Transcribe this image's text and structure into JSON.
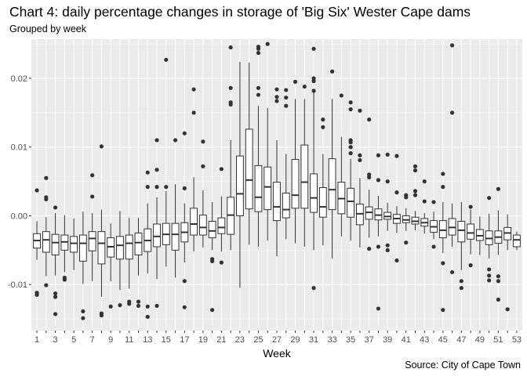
{
  "chart_data": {
    "type": "boxplot",
    "title": "Chart 4: daily percentage changes in storage of 'Big Six' Wester Cape dams",
    "subtitle": "Grouped by week",
    "caption": "Source: City of Cape Town",
    "xlabel": "Week",
    "ylabel": "",
    "ylim": [
      -0.0167,
      0.0257
    ],
    "grid": true,
    "x_tick_labels": [
      "1",
      "3",
      "5",
      "7",
      "9",
      "11",
      "13",
      "15",
      "17",
      "19",
      "21",
      "23",
      "25",
      "27",
      "29",
      "31",
      "33",
      "35",
      "37",
      "39",
      "41",
      "43",
      "45",
      "47",
      "49",
      "51",
      "53"
    ],
    "y_ticks": [
      -0.01,
      0.0,
      0.01,
      0.02
    ],
    "y_tick_labels": [
      "-0.01",
      "0.00",
      "0.01",
      "0.02"
    ],
    "colors": {
      "panel": "#ebebeb",
      "grid_major": "#ffffff",
      "box_fill": "#ffffff",
      "box_line": "#333333",
      "outlier": "#333333"
    },
    "weeks": [
      {
        "week": 1,
        "min": -0.0064,
        "q1": -0.0047,
        "median": -0.0036,
        "q3": -0.0026,
        "max": -0.0008,
        "outliers": [
          0.0037,
          -0.0112,
          -0.0115
        ]
      },
      {
        "week": 2,
        "min": -0.0088,
        "q1": -0.0053,
        "median": -0.0035,
        "q3": -0.0023,
        "max": -0.0002,
        "outliers": [
          0.0055,
          0.0027,
          0.0024,
          -0.0101
        ]
      },
      {
        "week": 3,
        "min": -0.0087,
        "q1": -0.0057,
        "median": -0.0039,
        "q3": -0.0027,
        "max": 0.0004,
        "outliers": [
          0.0012,
          -0.0113,
          -0.0118,
          -0.0143
        ]
      },
      {
        "week": 4,
        "min": -0.0082,
        "q1": -0.005,
        "median": -0.0038,
        "q3": -0.0028,
        "max": 0.0001,
        "outliers": [
          -0.009,
          -0.0093
        ]
      },
      {
        "week": 5,
        "min": -0.0079,
        "q1": -0.0053,
        "median": -0.004,
        "q3": -0.003,
        "max": -0.0004,
        "outliers": []
      },
      {
        "week": 6,
        "min": -0.0099,
        "q1": -0.0066,
        "median": -0.004,
        "q3": -0.0028,
        "max": 0.0006,
        "outliers": [
          -0.0139,
          -0.0149
        ]
      },
      {
        "week": 7,
        "min": -0.0095,
        "q1": -0.0051,
        "median": -0.0033,
        "q3": -0.0023,
        "max": 0.0004,
        "outliers": [
          0.0059,
          0.0028
        ]
      },
      {
        "week": 8,
        "min": -0.0118,
        "q1": -0.007,
        "median": -0.004,
        "q3": -0.0023,
        "max": 0.0009,
        "outliers": [
          0.0101,
          -0.0142,
          -0.0145
        ]
      },
      {
        "week": 9,
        "min": -0.0095,
        "q1": -0.006,
        "median": -0.0045,
        "q3": -0.0032,
        "max": -0.0011,
        "outliers": [
          -0.0132
        ]
      },
      {
        "week": 10,
        "min": -0.0108,
        "q1": -0.0063,
        "median": -0.0043,
        "q3": -0.003,
        "max": 0.0007,
        "outliers": [
          -0.013
        ]
      },
      {
        "week": 11,
        "min": -0.0106,
        "q1": -0.0063,
        "median": -0.004,
        "q3": -0.0028,
        "max": -0.0003,
        "outliers": [
          -0.0125,
          -0.0128
        ]
      },
      {
        "week": 12,
        "min": -0.0087,
        "q1": -0.0057,
        "median": -0.0039,
        "q3": -0.0025,
        "max": -0.0003,
        "outliers": [
          -0.0125,
          -0.0131
        ]
      },
      {
        "week": 13,
        "min": -0.0084,
        "q1": -0.0052,
        "median": -0.0036,
        "q3": -0.0019,
        "max": 0.0018,
        "outliers": [
          0.0063,
          0.0042,
          -0.0132,
          -0.0147
        ]
      },
      {
        "week": 14,
        "min": -0.0092,
        "q1": -0.0045,
        "median": -0.003,
        "q3": -0.0012,
        "max": 0.0027,
        "outliers": [
          0.011,
          0.0067,
          0.0042,
          -0.0131
        ]
      },
      {
        "week": 15,
        "min": -0.0074,
        "q1": -0.0042,
        "median": -0.0027,
        "q3": -0.0011,
        "max": 0.0036,
        "outliers": [
          0.0227,
          0.0042
        ]
      },
      {
        "week": 16,
        "min": -0.009,
        "q1": -0.005,
        "median": -0.0027,
        "q3": -0.0011,
        "max": 0.0046,
        "outliers": [
          0.011
        ]
      },
      {
        "week": 17,
        "min": -0.0068,
        "q1": -0.0038,
        "median": -0.0024,
        "q3": -0.001,
        "max": 0.0018,
        "outliers": [
          0.012,
          0.004,
          -0.0095,
          -0.0133
        ]
      },
      {
        "week": 18,
        "min": -0.0052,
        "q1": -0.0028,
        "median": -0.0012,
        "q3": 0.0011,
        "max": 0.0056,
        "outliers": [
          0.0184,
          0.015
        ]
      },
      {
        "week": 19,
        "min": -0.0046,
        "q1": -0.0028,
        "median": -0.0017,
        "q3": 0.0001,
        "max": 0.0037,
        "outliers": [
          0.0108,
          0.0072
        ]
      },
      {
        "week": 20,
        "min": -0.005,
        "q1": -0.0032,
        "median": -0.0022,
        "q3": -0.0008,
        "max": 0.002,
        "outliers": [
          -0.0063,
          -0.0066,
          -0.0137
        ]
      },
      {
        "week": 21,
        "min": -0.0052,
        "q1": -0.0026,
        "median": -0.0017,
        "q3": -0.0003,
        "max": 0.0028,
        "outliers": [
          0.0068,
          -0.0068
        ]
      },
      {
        "week": 22,
        "min": -0.005,
        "q1": -0.0027,
        "median": 0.0001,
        "q3": 0.0027,
        "max": 0.011,
        "outliers": [
          0.0245,
          0.0186,
          0.0165,
          0.0162
        ]
      },
      {
        "week": 23,
        "min": -0.0105,
        "q1": 0.0,
        "median": 0.0032,
        "q3": 0.0087,
        "max": 0.0224,
        "outliers": []
      },
      {
        "week": 24,
        "min": -0.0042,
        "q1": 0.001,
        "median": 0.0052,
        "q3": 0.0126,
        "max": 0.0223,
        "outliers": []
      },
      {
        "week": 25,
        "min": -0.0045,
        "q1": 0.0006,
        "median": 0.0027,
        "q3": 0.0073,
        "max": 0.016,
        "outliers": [
          0.0246,
          0.0243,
          0.0237,
          0.0186,
          0.0176
        ]
      },
      {
        "week": 26,
        "min": -0.0036,
        "q1": 0.0009,
        "median": 0.0042,
        "q3": 0.0071,
        "max": 0.0157,
        "outliers": [
          0.025
        ]
      },
      {
        "week": 27,
        "min": -0.0059,
        "q1": -0.0007,
        "median": 0.0013,
        "q3": 0.0049,
        "max": 0.011,
        "outliers": [
          0.0184,
          0.0173,
          0.0167
        ]
      },
      {
        "week": 28,
        "min": -0.0034,
        "q1": -0.0003,
        "median": 0.0009,
        "q3": 0.0033,
        "max": 0.009,
        "outliers": [
          0.0183,
          0.0172,
          0.016
        ]
      },
      {
        "week": 29,
        "min": -0.004,
        "q1": 0.0011,
        "median": 0.003,
        "q3": 0.0082,
        "max": 0.017,
        "outliers": [
          0.0195
        ]
      },
      {
        "week": 30,
        "min": -0.0045,
        "q1": 0.0011,
        "median": 0.0049,
        "q3": 0.0103,
        "max": 0.017,
        "outliers": [
          0.0188
        ]
      },
      {
        "week": 31,
        "min": -0.005,
        "q1": 0.0005,
        "median": 0.0026,
        "q3": 0.0061,
        "max": 0.018,
        "outliers": [
          0.0243,
          0.02,
          0.0196,
          0.0182,
          -0.0105
        ]
      },
      {
        "week": 32,
        "min": -0.0043,
        "q1": -0.0002,
        "median": 0.0013,
        "q3": 0.0041,
        "max": 0.009,
        "outliers": [
          0.014,
          0.0129
        ]
      },
      {
        "week": 33,
        "min": -0.0062,
        "q1": 0.0009,
        "median": 0.0038,
        "q3": 0.0083,
        "max": 0.017,
        "outliers": [
          0.021
        ]
      },
      {
        "week": 34,
        "min": -0.003,
        "q1": 0.0003,
        "median": 0.0025,
        "q3": 0.0049,
        "max": 0.0115,
        "outliers": [
          0.0175
        ]
      },
      {
        "week": 35,
        "min": -0.0036,
        "q1": -0.0002,
        "median": 0.0021,
        "q3": 0.004,
        "max": 0.0083,
        "outliers": [
          0.0165,
          0.0155,
          0.011,
          0.0107,
          0.01,
          0.0091
        ]
      },
      {
        "week": 36,
        "min": -0.0046,
        "q1": -0.0013,
        "median": 0.0003,
        "q3": 0.0017,
        "max": 0.0055,
        "outliers": [
          0.0153,
          0.0088,
          0.0081
        ]
      },
      {
        "week": 37,
        "min": -0.0032,
        "q1": -0.0005,
        "median": 0.0005,
        "q3": 0.0013,
        "max": 0.0038,
        "outliers": [
          0.014,
          0.006,
          0.0056,
          -0.0048
        ]
      },
      {
        "week": 38,
        "min": -0.003,
        "q1": -0.0006,
        "median": 0.0001,
        "q3": 0.001,
        "max": 0.0029,
        "outliers": [
          0.0088,
          0.0052,
          -0.0135,
          -0.0045
        ]
      },
      {
        "week": 39,
        "min": -0.0022,
        "q1": -0.0005,
        "median": -0.0001,
        "q3": 0.0005,
        "max": 0.0019,
        "outliers": [
          0.0089,
          0.005,
          -0.0043,
          -0.005
        ]
      },
      {
        "week": 40,
        "min": -0.0025,
        "q1": -0.0011,
        "median": -0.0004,
        "q3": 0.0002,
        "max": 0.0014,
        "outliers": [
          0.0087,
          0.0034,
          -0.0065
        ]
      },
      {
        "week": 41,
        "min": -0.0022,
        "q1": -0.001,
        "median": -0.0006,
        "q3": 0.0,
        "max": 0.0011,
        "outliers": [
          0.003,
          0.0027,
          -0.0039
        ]
      },
      {
        "week": 42,
        "min": -0.0021,
        "q1": -0.0012,
        "median": -0.0008,
        "q3": -0.0002,
        "max": 0.0007,
        "outliers": [
          0.0072,
          0.0066,
          0.0036,
          0.003
        ]
      },
      {
        "week": 43,
        "min": -0.0026,
        "q1": -0.0015,
        "median": -0.001,
        "q3": -0.0004,
        "max": 0.0004,
        "outliers": [
          0.005,
          0.0021
        ]
      },
      {
        "week": 44,
        "min": -0.0034,
        "q1": -0.0024,
        "median": -0.0016,
        "q3": -0.0007,
        "max": 0.0006,
        "outliers": [
          0.002,
          -0.0045
        ]
      },
      {
        "week": 45,
        "min": -0.0054,
        "q1": -0.0032,
        "median": -0.0021,
        "q3": -0.0007,
        "max": 0.002,
        "outliers": [
          0.0061,
          0.0042,
          -0.0137,
          -0.0069
        ]
      },
      {
        "week": 46,
        "min": -0.0045,
        "q1": -0.0028,
        "median": -0.0017,
        "q3": -0.0004,
        "max": 0.0018,
        "outliers": [
          0.0248,
          0.015,
          -0.0082
        ]
      },
      {
        "week": 47,
        "min": -0.0079,
        "q1": -0.0038,
        "median": -0.0021,
        "q3": -0.0008,
        "max": 0.002,
        "outliers": [
          -0.0095,
          -0.0105
        ]
      },
      {
        "week": 48,
        "min": -0.0056,
        "q1": -0.0034,
        "median": -0.0025,
        "q3": -0.0012,
        "max": 0.0009,
        "outliers": [
          0.0013,
          -0.0072
        ]
      },
      {
        "week": 49,
        "min": -0.0057,
        "q1": -0.0036,
        "median": -0.0029,
        "q3": -0.002,
        "max": -0.0001,
        "outliers": []
      },
      {
        "week": 50,
        "min": -0.0062,
        "q1": -0.0042,
        "median": -0.0033,
        "q3": -0.0022,
        "max": 0.0003,
        "outliers": [
          0.0026,
          -0.0078,
          -0.0087,
          -0.0094
        ]
      },
      {
        "week": 51,
        "min": -0.0057,
        "q1": -0.004,
        "median": -0.0031,
        "q3": -0.0022,
        "max": 0.0008,
        "outliers": [
          0.0039,
          -0.0088,
          -0.0095,
          -0.0122
        ]
      },
      {
        "week": 52,
        "min": -0.005,
        "q1": -0.0035,
        "median": -0.0025,
        "q3": -0.0017,
        "max": 0.0002,
        "outliers": [
          -0.0136
        ]
      },
      {
        "week": 53,
        "min": -0.005,
        "q1": -0.0045,
        "median": -0.0035,
        "q3": -0.0028,
        "max": -0.0023,
        "outliers": []
      }
    ]
  }
}
